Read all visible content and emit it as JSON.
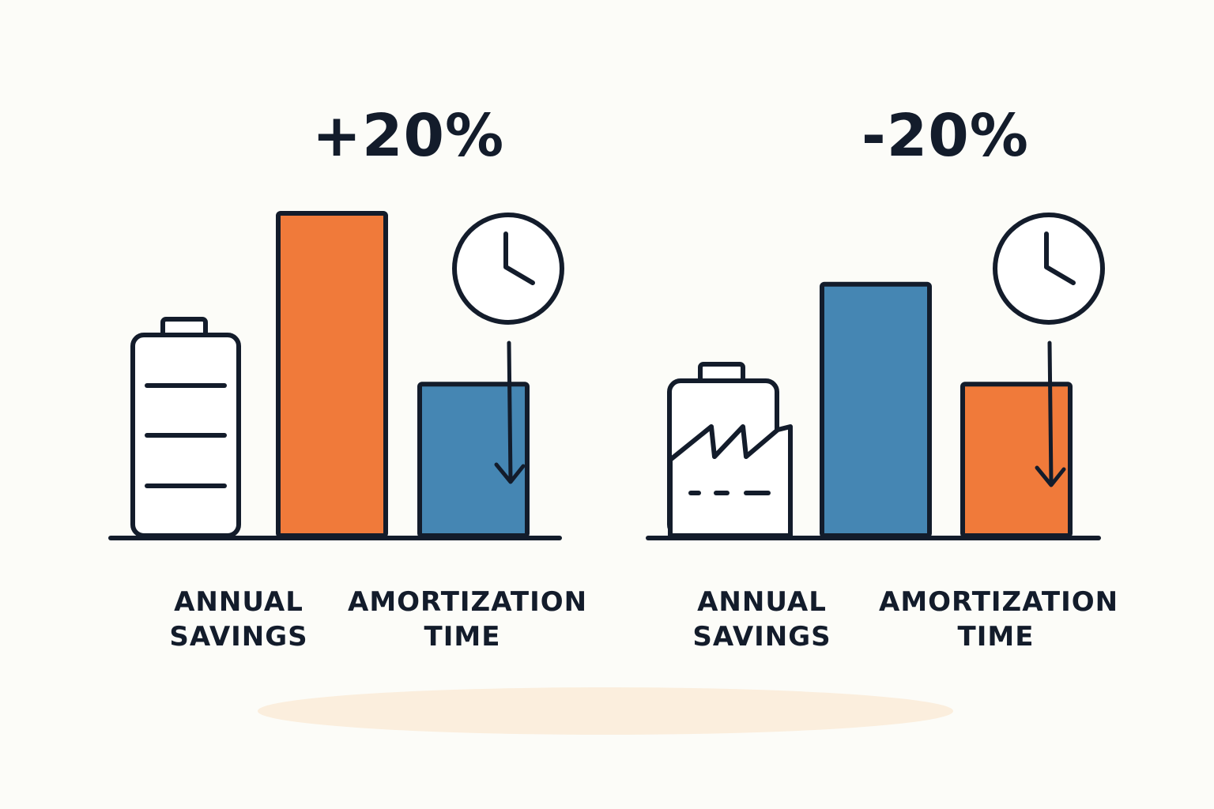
{
  "chart_data": [
    {
      "type": "bar",
      "title": "+20%",
      "icon": "battery-icon",
      "categories": [
        "ANNUAL SAVINGS",
        "AMORTIZATION TIME"
      ],
      "category_lines": [
        [
          "ANNUAL",
          "SAVINGS"
        ],
        [
          "AMORTIZATION",
          "TIME"
        ]
      ],
      "values": [
        100,
        47
      ],
      "colors": [
        "#f07a3a",
        "#4586b3"
      ],
      "annotation_icons": [
        "clock-icon",
        "down-arrow-icon"
      ]
    },
    {
      "type": "bar",
      "title": "-20%",
      "icon": "factory-icon",
      "categories": [
        "ANNUAL SAVINGS",
        "AMORTIZATION TIME"
      ],
      "category_lines": [
        [
          "ANNUAL",
          "SAVINGS"
        ],
        [
          "AMORTIZATION",
          "TIME"
        ]
      ],
      "values": [
        78,
        47
      ],
      "colors": [
        "#4586b3",
        "#f07a3a"
      ],
      "annotation_icons": [
        "clock-icon",
        "down-arrow-icon"
      ]
    }
  ],
  "colors": {
    "ink": "#131c2b",
    "orange": "#f07a3a",
    "blue": "#4586b3",
    "background": "#fcfcf8"
  }
}
